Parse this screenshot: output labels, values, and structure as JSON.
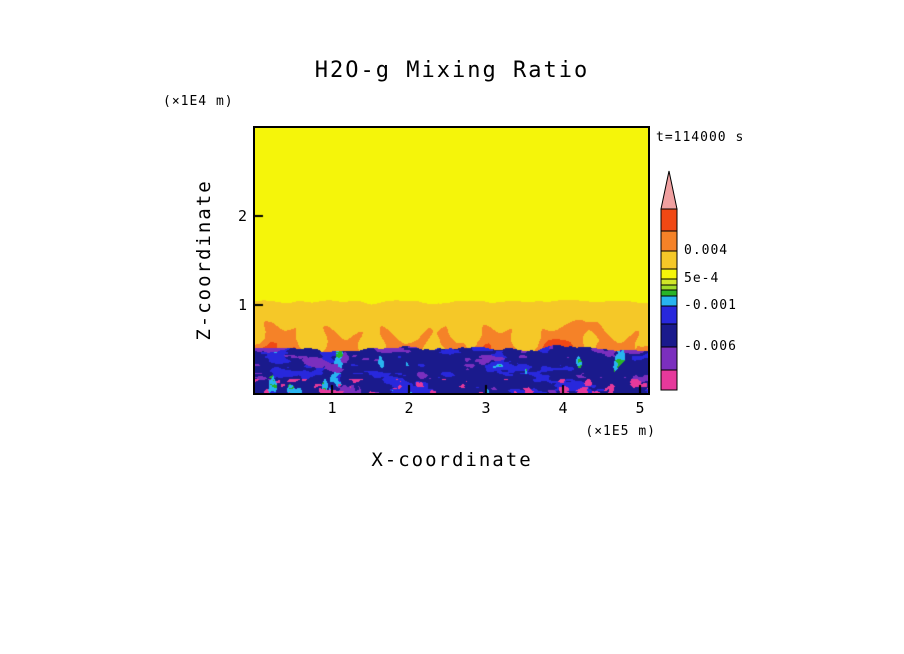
{
  "chart_data": {
    "type": "heatmap",
    "title": "H2O-g Mixing Ratio",
    "time_label": "t=114000 s",
    "axes": {
      "x_label": "X-coordinate",
      "x_unit": "(×1E5 m)",
      "x_ticks": [
        "1",
        "2",
        "3",
        "4",
        "5"
      ],
      "x_tick_values": [
        1,
        2,
        3,
        4,
        5
      ],
      "x_range_e5_m": [
        0,
        5.104
      ],
      "z_label": "Z-coordinate",
      "z_unit": "(×1E4 m)",
      "z_ticks": [
        "1",
        "2"
      ],
      "z_tick_values": [
        1,
        2
      ],
      "z_range_e4_m": [
        0,
        3.0
      ]
    },
    "colorbar": {
      "labels": [
        {
          "text": "0.004",
          "level": 0.004
        },
        {
          "text": "5e-4",
          "level": 0.0005
        },
        {
          "text": "-0.001",
          "level": -0.001
        },
        {
          "text": "-0.006",
          "level": -0.006
        }
      ],
      "levels": [
        -0.011,
        -0.006,
        -0.003,
        -0.001,
        -0.0005,
        -0.0001,
        0.0001,
        0.0005,
        0.001,
        0.004,
        0.009,
        0.014
      ],
      "colors": [
        "#E6399B",
        "#7B2FBE",
        "#1A1A8C",
        "#2828DC",
        "#28B4F0",
        "#28B428",
        "#A0DC28",
        "#D2E628",
        "#F5F50A",
        "#F5C828",
        "#F58228",
        "#F04814",
        "#F0A0A0"
      ]
    },
    "field": {
      "description": "Water-vapor mixing ratio: uniform ~8e-4 (yellow) layer aloft, orange convective plume chevrons between z~0.5e4 m and 1.1e4 m, turbulent negative-anomaly layer (blue/navy/purple down to ~-0.012, magenta spots at floor) below z~0.5e4 m",
      "background_value": 0.0008,
      "interface_z": 0.5,
      "mid_top": 1.08,
      "plumes": [
        {
          "x": 0.18,
          "a": 0.008,
          "w": 0.1
        },
        {
          "x": 0.55,
          "a": 0.005,
          "w": 0.07
        },
        {
          "x": 0.95,
          "a": 0.006,
          "w": 0.08
        },
        {
          "x": 1.35,
          "a": 0.0045,
          "w": 0.07
        },
        {
          "x": 1.75,
          "a": 0.006,
          "w": 0.08
        },
        {
          "x": 2.15,
          "a": 0.005,
          "w": 0.07
        },
        {
          "x": 2.55,
          "a": 0.0055,
          "w": 0.08
        },
        {
          "x": 2.95,
          "a": 0.0065,
          "w": 0.09
        },
        {
          "x": 3.35,
          "a": 0.005,
          "w": 0.07
        },
        {
          "x": 3.7,
          "a": 0.0045,
          "w": 0.07
        },
        {
          "x": 4.1,
          "a": 0.009,
          "w": 0.16
        },
        {
          "x": 4.55,
          "a": 0.0055,
          "w": 0.08
        },
        {
          "x": 4.9,
          "a": 0.005,
          "w": 0.07
        }
      ],
      "seed": 114000
    }
  }
}
